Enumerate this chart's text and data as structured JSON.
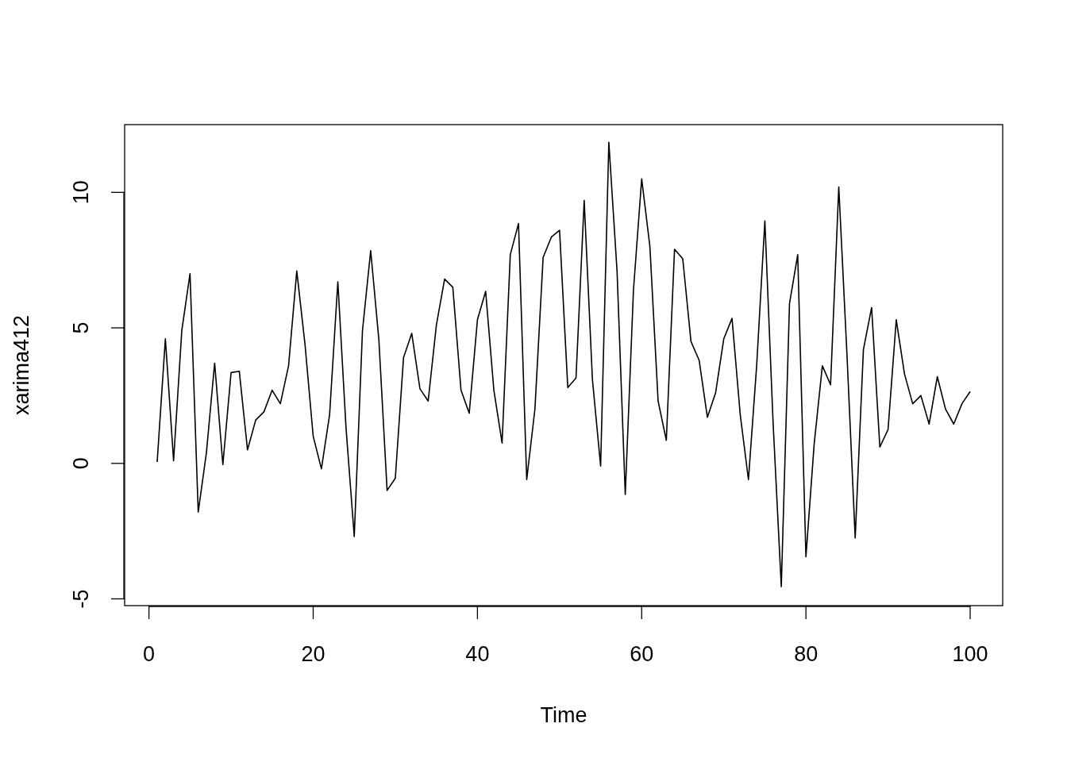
{
  "chart_data": {
    "type": "line",
    "xlabel": "Time",
    "ylabel": "xarima412",
    "x": [
      1,
      2,
      3,
      4,
      5,
      6,
      7,
      8,
      9,
      10,
      11,
      12,
      13,
      14,
      15,
      16,
      17,
      18,
      19,
      20,
      21,
      22,
      23,
      24,
      25,
      26,
      27,
      28,
      29,
      30,
      31,
      32,
      33,
      34,
      35,
      36,
      37,
      38,
      39,
      40,
      41,
      42,
      43,
      44,
      45,
      46,
      47,
      48,
      49,
      50,
      51,
      52,
      53,
      54,
      55,
      56,
      57,
      58,
      59,
      60,
      61,
      62,
      63,
      64,
      65,
      66,
      67,
      68,
      69,
      70,
      71,
      72,
      73,
      74,
      75,
      76,
      77,
      78,
      79,
      80,
      81,
      82,
      83,
      84,
      85,
      86,
      87,
      88,
      89,
      90,
      91,
      92,
      93,
      94,
      95,
      96,
      97,
      98,
      99,
      100
    ],
    "series": [
      {
        "color": "#000000",
        "values": [
          0.05,
          4.6,
          0.1,
          4.9,
          7.0,
          -1.8,
          0.4,
          3.7,
          -0.05,
          3.35,
          3.4,
          0.5,
          1.6,
          1.9,
          2.7,
          2.2,
          3.6,
          7.1,
          4.4,
          1.0,
          -0.2,
          1.8,
          6.7,
          1.3,
          -2.7,
          4.9,
          7.85,
          4.55,
          -1.0,
          -0.55,
          3.9,
          4.8,
          2.75,
          2.3,
          5.1,
          6.8,
          6.5,
          2.7,
          1.85,
          5.3,
          6.35,
          2.7,
          0.75,
          7.7,
          8.85,
          -0.6,
          2.0,
          7.6,
          8.35,
          8.6,
          2.8,
          3.15,
          9.7,
          3.1,
          -0.1,
          11.85,
          7.1,
          -1.15,
          6.4,
          10.5,
          8.0,
          2.3,
          0.85,
          7.9,
          7.55,
          4.5,
          3.8,
          1.7,
          2.6,
          4.6,
          5.35,
          1.8,
          -0.6,
          3.6,
          8.95,
          1.5,
          -4.55,
          5.9,
          7.7,
          -3.45,
          0.7,
          3.6,
          2.9,
          10.2,
          4.0,
          -2.75,
          4.2,
          5.75,
          0.6,
          1.25,
          5.3,
          3.3,
          2.2,
          2.5,
          1.45,
          3.2,
          2.0,
          1.45,
          2.2,
          2.65
        ]
      }
    ],
    "xlim": [
      -2.96,
      103.96
    ],
    "ylim": [
      -5.25,
      12.5
    ],
    "xticks": [
      0,
      20,
      40,
      60,
      80,
      100
    ],
    "yticks": [
      -5,
      0,
      5,
      10
    ],
    "grid": false,
    "marker": "none",
    "line_style": "solid"
  }
}
